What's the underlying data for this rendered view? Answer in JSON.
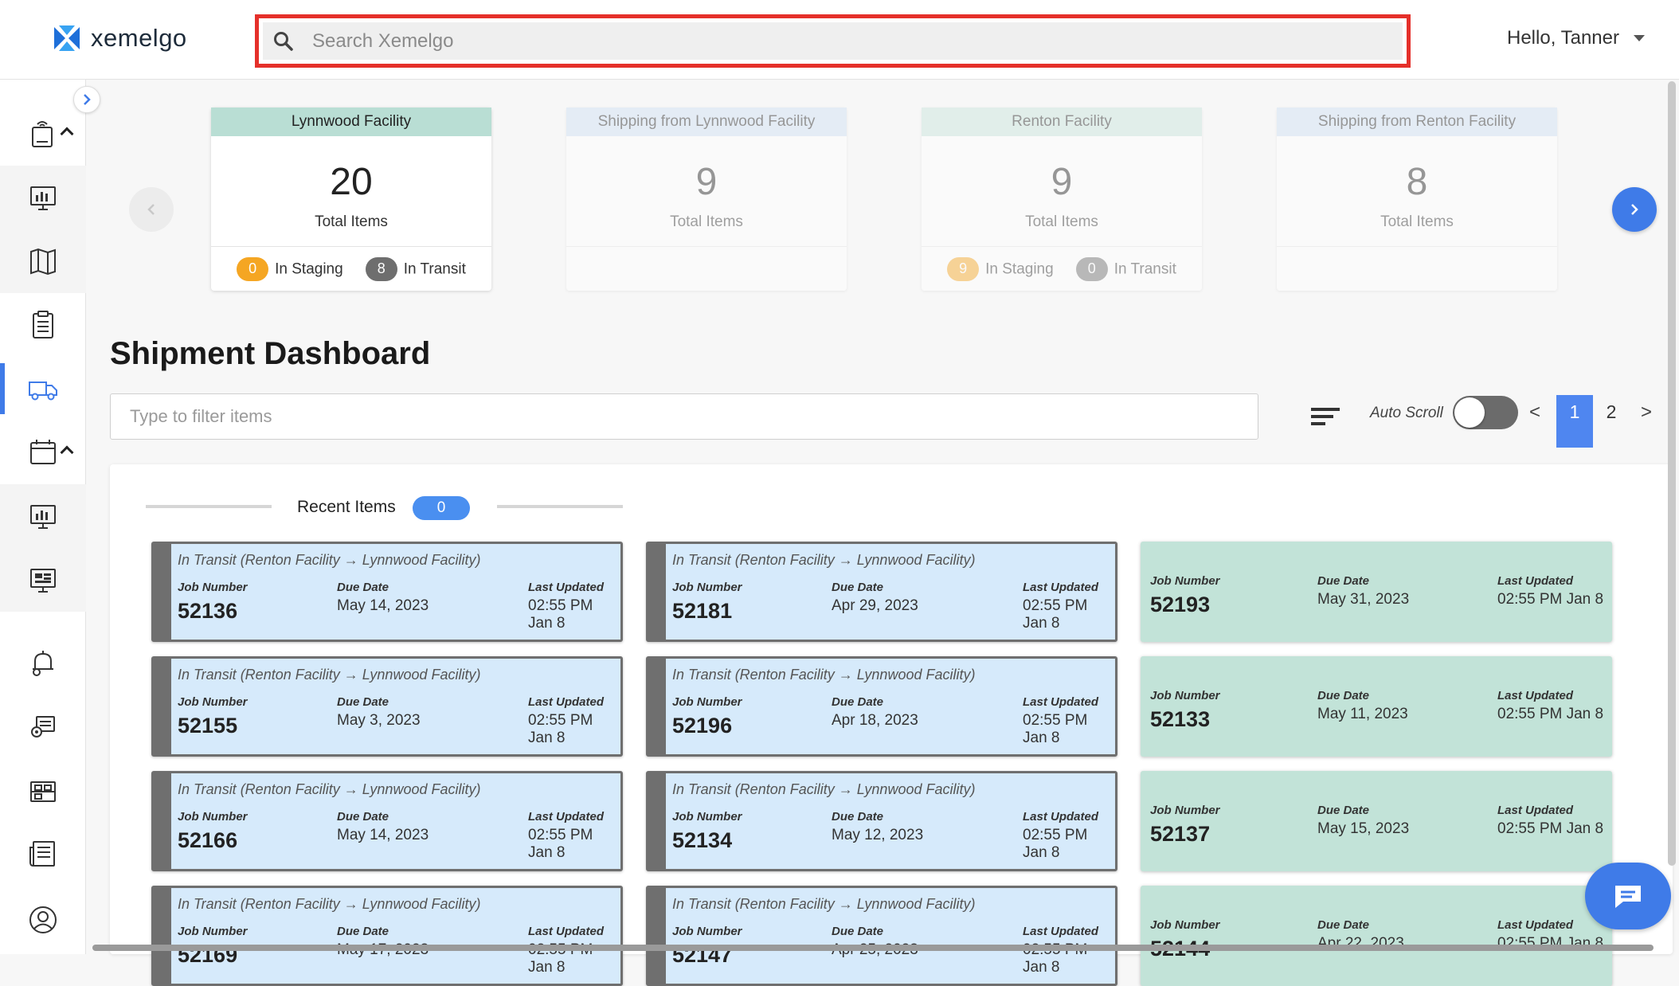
{
  "header": {
    "logo_text": "xemelgo",
    "search_placeholder": "Search Xemelgo",
    "greeting": "Hello, Tanner"
  },
  "sidebar": {
    "items": [
      {
        "icon": "rfid-tag-icon"
      },
      {
        "icon": "monitor-chart-icon"
      },
      {
        "icon": "map-icon"
      },
      {
        "icon": "clipboard-icon"
      },
      {
        "icon": "truck-icon"
      },
      {
        "icon": "calendar-icon"
      },
      {
        "icon": "monitor-chart-icon"
      },
      {
        "icon": "monitor-dashboard-icon"
      },
      {
        "icon": "alert-bell-icon"
      },
      {
        "icon": "settings-icon"
      },
      {
        "icon": "inventory-icon"
      },
      {
        "icon": "reports-icon"
      },
      {
        "icon": "user-icon"
      }
    ]
  },
  "summary_cards": [
    {
      "title": "Lynnwood Facility",
      "count": "20",
      "subtitle": "Total Items",
      "staging_count": "0",
      "staging_label": "In Staging",
      "transit_count": "8",
      "transit_label": "In Transit"
    },
    {
      "title": "Shipping from Lynnwood Facility",
      "count": "9",
      "subtitle": "Total Items"
    },
    {
      "title": "Renton Facility",
      "count": "9",
      "subtitle": "Total Items",
      "staging_count": "9",
      "staging_label": "In Staging",
      "transit_count": "0",
      "transit_label": "In Transit"
    },
    {
      "title": "Shipping from Renton Facility",
      "count": "8",
      "subtitle": "Total Items"
    }
  ],
  "dashboard": {
    "title": "Shipment Dashboard",
    "filter_placeholder": "Type to filter items",
    "auto_scroll_label": "Auto Scroll",
    "auto_scroll_on": false,
    "pager": {
      "prev": "<",
      "pages": [
        "1",
        "2"
      ],
      "active": "1",
      "next": ">"
    }
  },
  "recent": {
    "label": "Recent Items",
    "count": "0"
  },
  "labels": {
    "job_number": "Job Number",
    "due_date": "Due Date",
    "last_updated": "Last Updated"
  },
  "columns": [
    {
      "type": "transit",
      "cards": [
        {
          "status": "In Transit (Renton Facility → Lynnwood Facility)",
          "job": "52136",
          "due": "May 14, 2023",
          "updated": "02:55 PM Jan 8"
        },
        {
          "status": "In Transit (Renton Facility → Lynnwood Facility)",
          "job": "52155",
          "due": "May 3, 2023",
          "updated": "02:55 PM Jan 8"
        },
        {
          "status": "In Transit (Renton Facility → Lynnwood Facility)",
          "job": "52166",
          "due": "May 14, 2023",
          "updated": "02:55 PM Jan 8"
        },
        {
          "status": "In Transit (Renton Facility → Lynnwood Facility)",
          "job": "52169",
          "due": "May 17, 2023",
          "updated": "02:55 PM Jan 8"
        }
      ]
    },
    {
      "type": "transit",
      "cards": [
        {
          "status": "In Transit (Renton Facility → Lynnwood Facility)",
          "job": "52181",
          "due": "Apr 29, 2023",
          "updated": "02:55 PM Jan 8"
        },
        {
          "status": "In Transit (Renton Facility → Lynnwood Facility)",
          "job": "52196",
          "due": "Apr 18, 2023",
          "updated": "02:55 PM Jan 8"
        },
        {
          "status": "In Transit (Renton Facility → Lynnwood Facility)",
          "job": "52134",
          "due": "May 12, 2023",
          "updated": "02:55 PM Jan 8"
        },
        {
          "status": "In Transit (Renton Facility → Lynnwood Facility)",
          "job": "52147",
          "due": "Apr 25, 2023",
          "updated": "02:55 PM Jan 8"
        }
      ]
    },
    {
      "type": "done",
      "cards": [
        {
          "job": "52193",
          "due": "May 31, 2023",
          "updated": "02:55 PM Jan 8"
        },
        {
          "job": "52133",
          "due": "May 11, 2023",
          "updated": "02:55 PM Jan 8"
        },
        {
          "job": "52137",
          "due": "May 15, 2023",
          "updated": "02:55 PM Jan 8"
        },
        {
          "job": "52144",
          "due": "Apr 22, 2023",
          "updated": "02:55 PM Jan 8"
        }
      ]
    }
  ],
  "colors": {
    "accent": "#3f7be8",
    "highlight": "#e5302a",
    "transit_card": "#d6eafb",
    "done_card": "#c2e3d8"
  }
}
